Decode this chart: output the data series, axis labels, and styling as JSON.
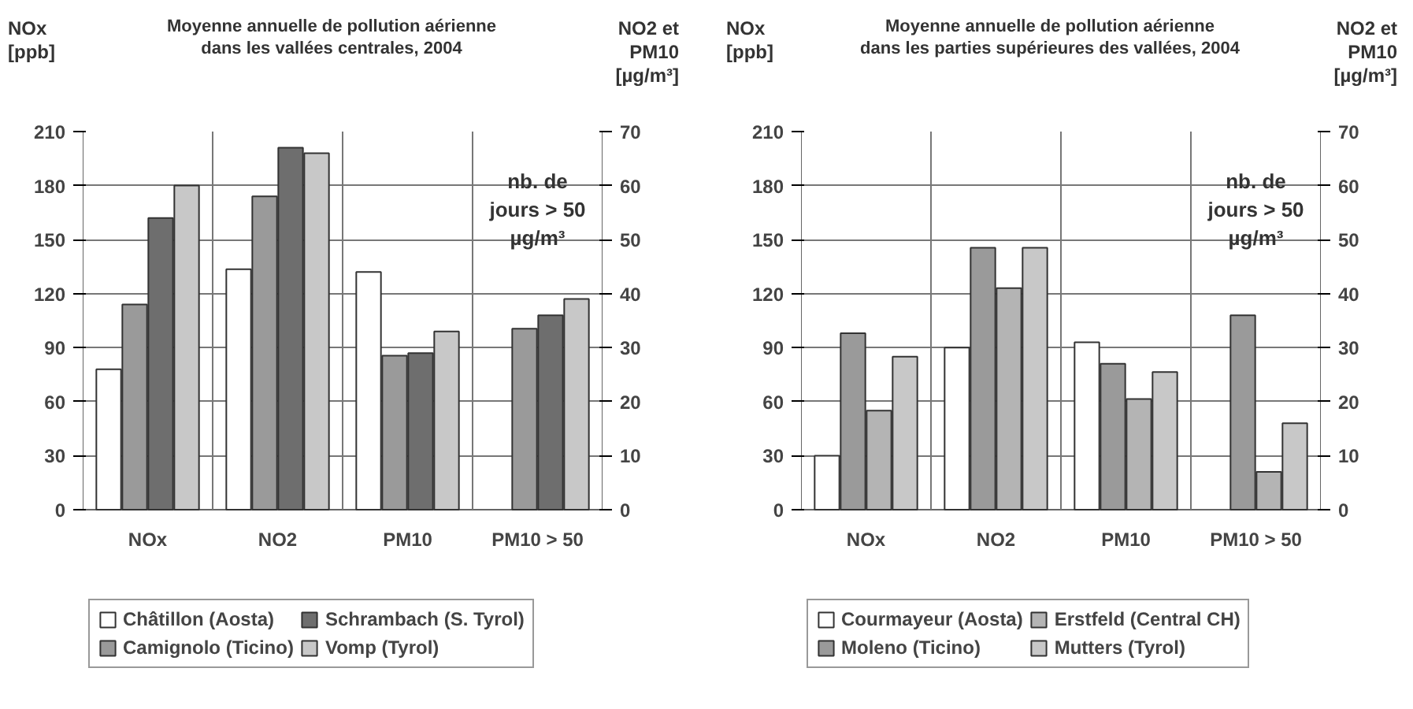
{
  "chart_data": [
    {
      "type": "bar",
      "title": "Moyenne annuelle de pollution aérienne\ndans les vallées centrales, 2004",
      "ylabel": "NOx\n[ppb]",
      "y2label": "NO2 et\nPM10\n[µg/m³]",
      "annotations": [
        "nb. de\njours > 50\nµg/m³"
      ],
      "categories": [
        "NOx",
        "NO2",
        "PM10",
        "PM10 > 50"
      ],
      "ylim": [
        0,
        210
      ],
      "yticks": [
        0,
        30,
        60,
        90,
        120,
        150,
        180,
        210
      ],
      "y2lim": [
        0,
        70
      ],
      "y2ticks": [
        0,
        10,
        20,
        30,
        40,
        50,
        60,
        70
      ],
      "grid": true,
      "legend": "bottom",
      "series": [
        {
          "name": "Châtillon (Aosta)",
          "color": "#ffffff",
          "values": [
            78,
            null,
            null,
            null
          ]
        },
        {
          "name": "Camignolo (Ticino)",
          "color": "#9a9a9a",
          "values": [
            114,
            null,
            null,
            null
          ]
        },
        {
          "name": "Schrambach (S. Tyrol)",
          "color": "#6e6e6e",
          "values": [
            162,
            null,
            null,
            null
          ]
        },
        {
          "name": "Vomp (Tyrol)",
          "color": "#c8c8c8",
          "values": [
            180,
            null,
            null,
            null
          ]
        },
        {
          "color": "#ffffff",
          "axis": "y2",
          "values": [
            null,
            44.5,
            44,
            null
          ]
        },
        {
          "color": "#9a9a9a",
          "axis": "y2",
          "values": [
            null,
            58,
            28.5,
            33.5
          ]
        },
        {
          "color": "#6e6e6e",
          "axis": "y2",
          "values": [
            null,
            67,
            29,
            36
          ]
        },
        {
          "color": "#c8c8c8",
          "axis": "y2",
          "values": [
            null,
            66,
            33,
            39
          ]
        }
      ]
    },
    {
      "type": "bar",
      "title": "Moyenne annuelle de pollution aérienne\ndans les parties supérieures des vallées, 2004",
      "ylabel": "NOx\n[ppb]",
      "y2label": "NO2 et\nPM10\n[µg/m³]",
      "annotations": [
        "nb. de\njours > 50\nµg/m³"
      ],
      "categories": [
        "NOx",
        "NO2",
        "PM10",
        "PM10 > 50"
      ],
      "ylim": [
        0,
        210
      ],
      "yticks": [
        0,
        30,
        60,
        90,
        120,
        150,
        180,
        210
      ],
      "y2lim": [
        0,
        70
      ],
      "y2ticks": [
        0,
        10,
        20,
        30,
        40,
        50,
        60,
        70
      ],
      "grid": true,
      "legend": "bottom",
      "series": [
        {
          "name": "Courmayeur (Aosta)",
          "color": "#ffffff",
          "values": [
            30,
            null,
            null,
            null
          ]
        },
        {
          "name": "Moleno (Ticino)",
          "color": "#9a9a9a",
          "values": [
            98,
            null,
            null,
            null
          ]
        },
        {
          "name": "Erstfeld (Central CH)",
          "color": "#b4b4b4",
          "values": [
            55,
            null,
            null,
            null
          ]
        },
        {
          "name": "Mutters (Tyrol)",
          "color": "#c8c8c8",
          "values": [
            85,
            null,
            null,
            null
          ]
        },
        {
          "color": "#ffffff",
          "axis": "y2",
          "values": [
            null,
            30,
            31,
            null
          ]
        },
        {
          "color": "#9a9a9a",
          "axis": "y2",
          "values": [
            null,
            48.5,
            27,
            36
          ]
        },
        {
          "color": "#b4b4b4",
          "axis": "y2",
          "values": [
            null,
            41,
            20.5,
            7
          ]
        },
        {
          "color": "#c8c8c8",
          "axis": "y2",
          "values": [
            null,
            48.5,
            25.5,
            16
          ]
        }
      ]
    }
  ]
}
